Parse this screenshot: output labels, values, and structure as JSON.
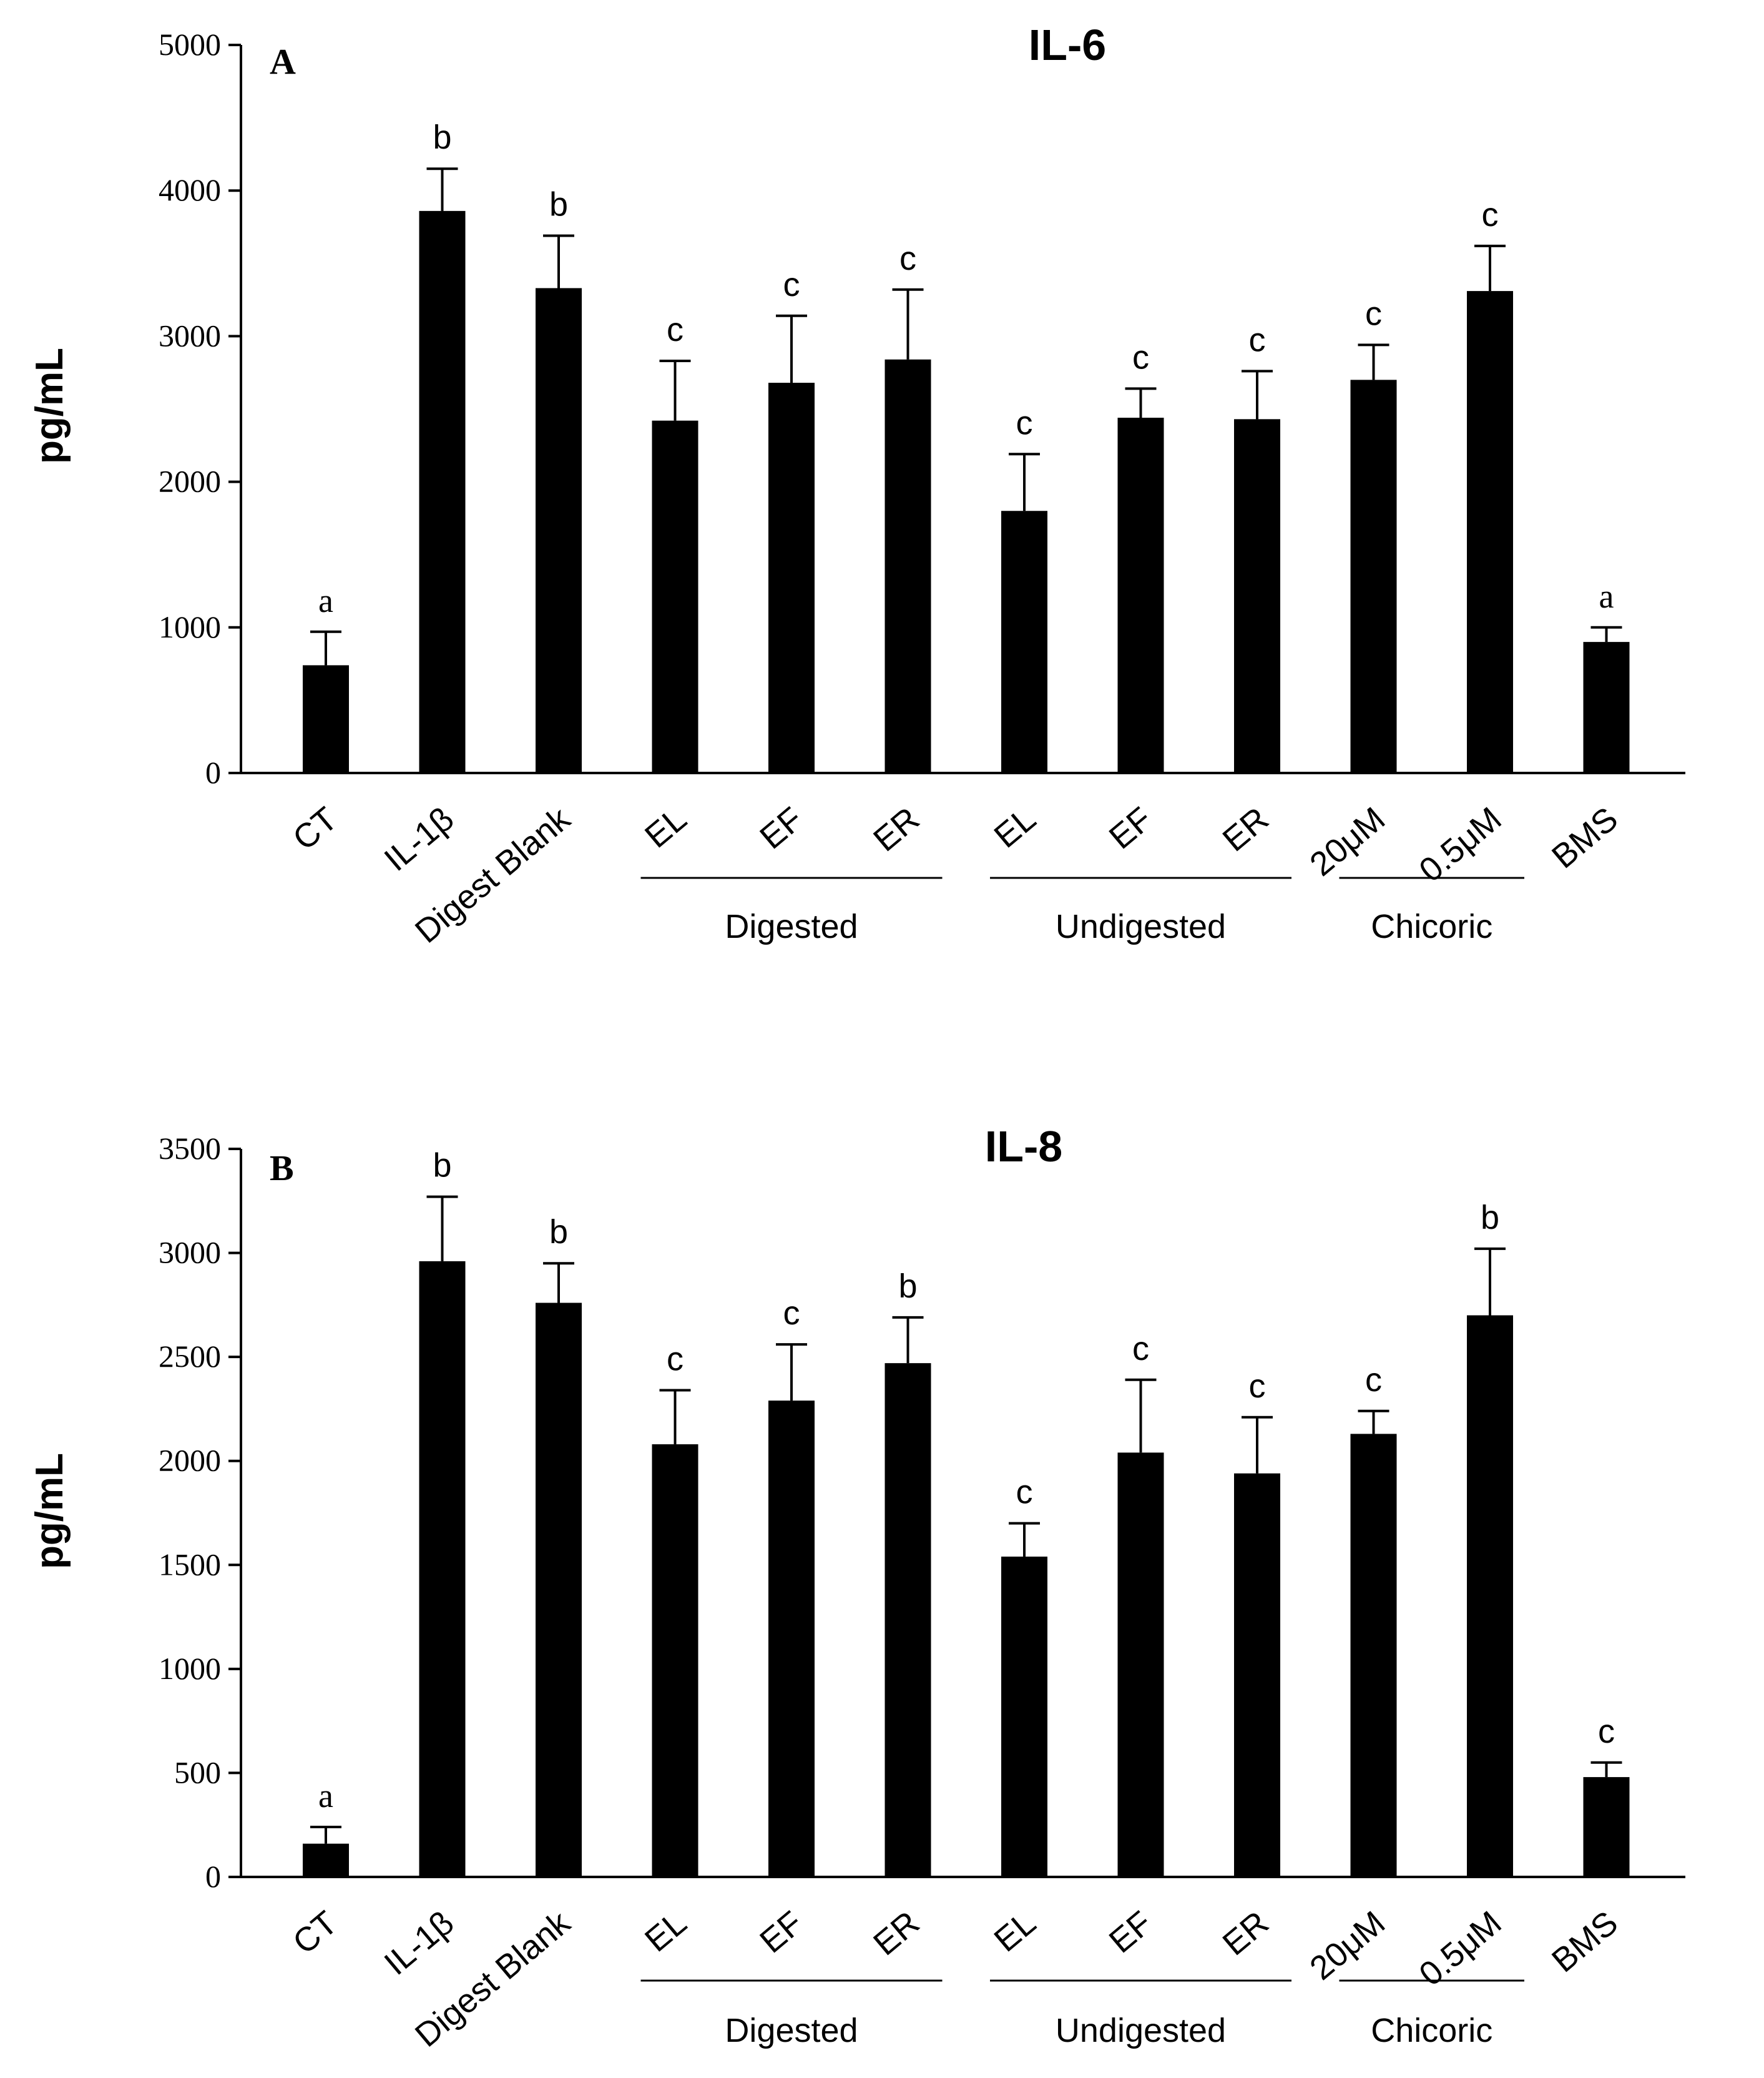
{
  "chart_data": [
    {
      "type": "bar",
      "panel": "A",
      "title": "IL-6",
      "ylabel": "pg/mL",
      "xlabel": "",
      "ylim": [
        0,
        5000
      ],
      "yticks": [
        0,
        1000,
        2000,
        3000,
        4000,
        5000
      ],
      "categories": [
        "CT",
        "IL-1β",
        "Digest Blank",
        "EL",
        "EF",
        "ER",
        "EL",
        "EF",
        "ER",
        "20μM",
        "0.5μM",
        "BMS"
      ],
      "values": [
        740,
        3860,
        3330,
        2420,
        2680,
        2840,
        1800,
        2440,
        2430,
        2700,
        3310,
        900
      ],
      "errors": [
        230,
        290,
        360,
        410,
        460,
        480,
        390,
        200,
        330,
        240,
        310,
        100
      ],
      "significance": [
        "a",
        "b",
        "b",
        "c",
        "c",
        "c",
        "c",
        "c",
        "c",
        "c",
        "c",
        "a"
      ],
      "groups": [
        {
          "label": "Digested",
          "start": 3,
          "end": 5
        },
        {
          "label": "Undigested",
          "start": 6,
          "end": 8
        },
        {
          "label": "Chicoric",
          "start": 9,
          "end": 10
        }
      ]
    },
    {
      "type": "bar",
      "panel": "B",
      "title": "IL-8",
      "ylabel": "pg/mL",
      "xlabel": "",
      "ylim": [
        0,
        3500
      ],
      "yticks": [
        0,
        500,
        1000,
        1500,
        2000,
        2500,
        3000,
        3500
      ],
      "categories": [
        "CT",
        "IL-1β",
        "Digest Blank",
        "EL",
        "EF",
        "ER",
        "EL",
        "EF",
        "ER",
        "20μM",
        "0.5μM",
        "BMS"
      ],
      "values": [
        160,
        2960,
        2760,
        2080,
        2290,
        2470,
        1540,
        2040,
        1940,
        2130,
        2700,
        480
      ],
      "errors": [
        80,
        310,
        190,
        260,
        270,
        220,
        160,
        350,
        270,
        110,
        320,
        70
      ],
      "significance": [
        "a",
        "b",
        "b",
        "c",
        "c",
        "b",
        "c",
        "c",
        "c",
        "c",
        "b",
        "c"
      ],
      "groups": [
        {
          "label": "Digested",
          "start": 3,
          "end": 5
        },
        {
          "label": "Undigested",
          "start": 6,
          "end": 8
        },
        {
          "label": "Chicoric",
          "start": 9,
          "end": 10
        }
      ]
    }
  ]
}
